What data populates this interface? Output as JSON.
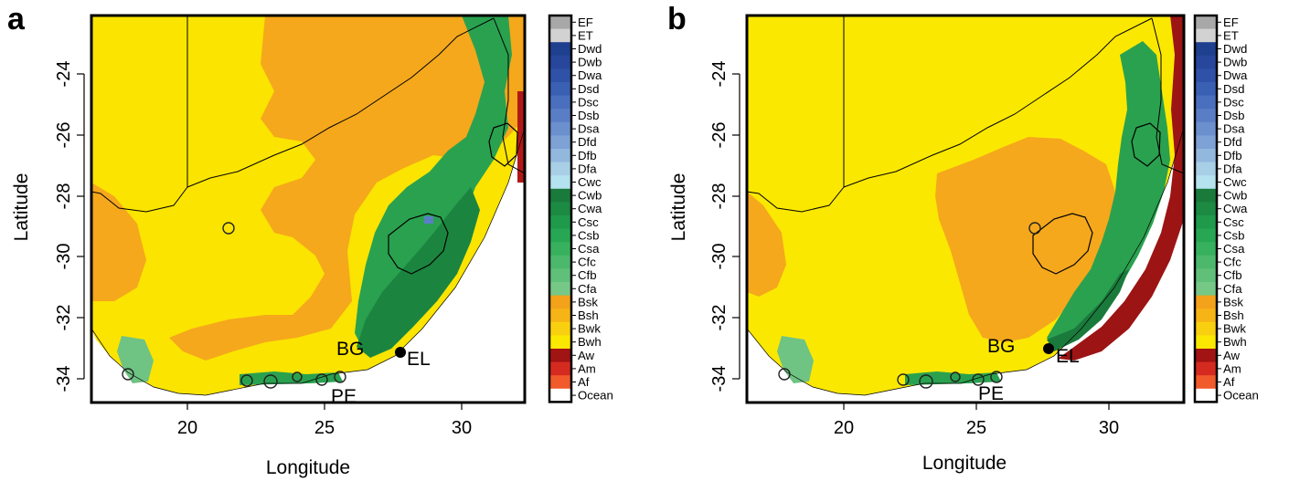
{
  "panels": [
    {
      "letter": "a",
      "xlabel": "Longitude",
      "ylabel": "Latitude",
      "x_ticks": [
        20,
        25,
        30
      ],
      "y_ticks": [
        -24,
        -26,
        -28,
        -30,
        -32,
        -34
      ],
      "x_tick_labels": [
        "20",
        "25",
        "30"
      ],
      "y_tick_labels": [
        "-24",
        "-26",
        "-28",
        "-30",
        "-32",
        "-34"
      ],
      "places": [
        {
          "label": "BG"
        },
        {
          "label": "EL"
        },
        {
          "label": "PE"
        }
      ]
    },
    {
      "letter": "b",
      "xlabel": "Longitude",
      "ylabel": "Latitude",
      "x_ticks": [
        20,
        25,
        30
      ],
      "y_ticks": [
        -24,
        -26,
        -28,
        -30,
        -32,
        -34
      ],
      "x_tick_labels": [
        "20",
        "25",
        "30"
      ],
      "y_tick_labels": [
        "-24",
        "-26",
        "-28",
        "-30",
        "-32",
        "-34"
      ],
      "places": [
        {
          "label": "BG"
        },
        {
          "label": "EL"
        },
        {
          "label": "PE"
        }
      ]
    }
  ],
  "legend": [
    {
      "label": "EF",
      "color": "#a8a8a8"
    },
    {
      "label": "ET",
      "color": "#d2d2d2"
    },
    {
      "label": "Dwd",
      "color": "#1f3f8f"
    },
    {
      "label": "Dwb",
      "color": "#27469c"
    },
    {
      "label": "Dwa",
      "color": "#2f52a8"
    },
    {
      "label": "Dsd",
      "color": "#3a60b4"
    },
    {
      "label": "Dsc",
      "color": "#4a6fbe"
    },
    {
      "label": "Dsb",
      "color": "#5a7ec6"
    },
    {
      "label": "Dsa",
      "color": "#6c8fcd"
    },
    {
      "label": "Dfd",
      "color": "#7ea1d6"
    },
    {
      "label": "Dfb",
      "color": "#93b8de"
    },
    {
      "label": "Dfa",
      "color": "#a9cfe7"
    },
    {
      "label": "Cwc",
      "color": "#b4e2ee"
    },
    {
      "label": "Cwb",
      "color": "#1a7a3c"
    },
    {
      "label": "Cwa",
      "color": "#1c8a43"
    },
    {
      "label": "Csc",
      "color": "#1f9a4b"
    },
    {
      "label": "Csb",
      "color": "#27a753"
    },
    {
      "label": "Csa",
      "color": "#38b15e"
    },
    {
      "label": "Cfc",
      "color": "#4cb86c"
    },
    {
      "label": "Cfb",
      "color": "#60c079"
    },
    {
      "label": "Cfa",
      "color": "#76c887"
    },
    {
      "label": "Bsk",
      "color": "#f4a21a"
    },
    {
      "label": "Bsh",
      "color": "#f6b416"
    },
    {
      "label": "Bwk",
      "color": "#f9d00f"
    },
    {
      "label": "Bwh",
      "color": "#fbe800"
    },
    {
      "label": "Aw",
      "color": "#a01414"
    },
    {
      "label": "Am",
      "color": "#d52a20"
    },
    {
      "label": "Af",
      "color": "#f15a2a"
    },
    {
      "label": "Ocean",
      "color": "#ffffff"
    }
  ]
}
